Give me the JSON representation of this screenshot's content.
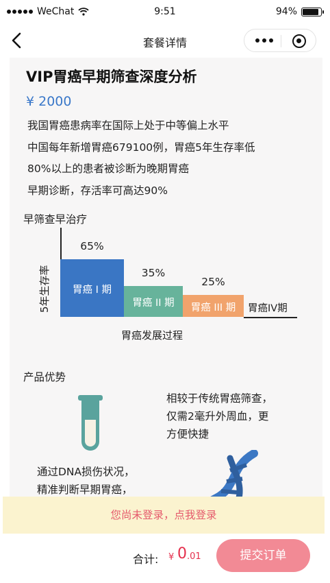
{
  "status_bar": {
    "carrier": "WeChat",
    "time": "9:51",
    "battery": "94%",
    "battery_level": 0.94
  },
  "nav": {
    "title": "套餐详情"
  },
  "package": {
    "title": "VIP胃癌早期筛查深度分析",
    "price": "¥ 2000",
    "description": [
      "我国胃癌患病率在国际上处于中等偏上水平",
      "中国每年新增胃癌679100例，胃癌5年生存率低",
      "80%以上的患者被诊断为晚期胃癌",
      "早期诊断，存活率可高达90%"
    ]
  },
  "chart_section": {
    "heading": "早筛查早治疗"
  },
  "chart_data": {
    "type": "bar",
    "categories": [
      "胃癌 I 期",
      "胃癌 II 期",
      "胃癌 III 期",
      "胃癌IV期"
    ],
    "values": [
      65,
      35,
      25,
      0
    ],
    "value_labels": [
      "65%",
      "35%",
      "25%",
      ""
    ],
    "colors": [
      "#3a76c4",
      "#67b39b",
      "#f1a36c",
      "#222222"
    ],
    "xlabel": "胃癌发展过程",
    "ylabel": "5年生存率"
  },
  "advantages": {
    "heading": "产品优势",
    "item1_lines": [
      "相较于传统胃癌筛查，",
      "仅需2毫升外周血，更",
      "方便快捷"
    ],
    "item2_lines": [
      "通过DNA损伤状况，",
      "精准判断早期胃癌，"
    ]
  },
  "login_banner": {
    "text": "您尚未登录，点我登录"
  },
  "bottom": {
    "total_label": "合计:",
    "currency": "¥",
    "total_int": "0",
    "total_dec": ".01",
    "submit_label": "提交订单"
  },
  "colors": {
    "price_blue": "#3a78c9",
    "submit_pink": "#f28a95",
    "banner_bg": "#fbf3cf",
    "banner_text": "#e5596b",
    "total_red": "#e5304d"
  }
}
